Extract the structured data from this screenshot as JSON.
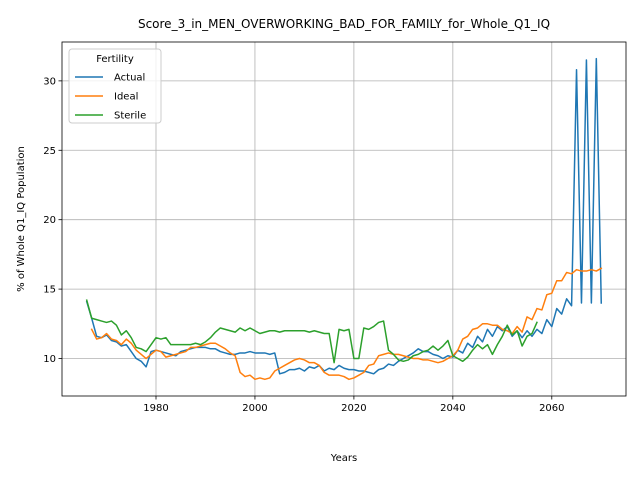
{
  "chart_data": {
    "type": "line",
    "title": "Score_3_in_MEN_OVERWORKING_BAD_FOR_FAMILY_for_Whole_Q1_IQ",
    "xlabel": "Years",
    "ylabel": "% of Whole Q1_IQ Population",
    "xlim": [
      1961,
      2075
    ],
    "ylim": [
      7.3,
      32.8
    ],
    "xticks": [
      1980,
      2000,
      2020,
      2040,
      2060
    ],
    "yticks": [
      10,
      15,
      20,
      25,
      30
    ],
    "grid": true,
    "legend": {
      "title": "Fertility",
      "placement": "top-left",
      "entries": [
        "Actual",
        "Ideal",
        "Sterile"
      ]
    },
    "x": [
      1966,
      1967,
      1968,
      1969,
      1970,
      1971,
      1972,
      1973,
      1974,
      1975,
      1976,
      1977,
      1978,
      1979,
      1980,
      1981,
      1982,
      1983,
      1984,
      1985,
      1986,
      1987,
      1988,
      1989,
      1990,
      1991,
      1992,
      1993,
      1994,
      1995,
      1996,
      1997,
      1998,
      1999,
      2000,
      2001,
      2002,
      2003,
      2004,
      2005,
      2006,
      2007,
      2008,
      2009,
      2010,
      2011,
      2012,
      2013,
      2014,
      2015,
      2016,
      2017,
      2018,
      2019,
      2020,
      2021,
      2022,
      2023,
      2024,
      2025,
      2026,
      2027,
      2028,
      2029,
      2030,
      2031,
      2032,
      2033,
      2034,
      2035,
      2036,
      2037,
      2038,
      2039,
      2040,
      2041,
      2042,
      2043,
      2044,
      2045,
      2046,
      2047,
      2048,
      2049,
      2050,
      2051,
      2052,
      2053,
      2054,
      2055,
      2056,
      2057,
      2058,
      2059,
      2060,
      2061,
      2062,
      2063,
      2064,
      2065,
      2066,
      2067,
      2068,
      2069,
      2070
    ],
    "series": [
      {
        "name": "Actual",
        "color": "#1f77b4",
        "values": [
          14.1,
          12.9,
          11.6,
          11.5,
          11.7,
          11.3,
          11.2,
          10.9,
          11.0,
          10.5,
          10.0,
          9.8,
          9.4,
          10.5,
          10.6,
          10.5,
          10.4,
          10.3,
          10.2,
          10.5,
          10.6,
          10.7,
          10.8,
          10.8,
          10.8,
          10.7,
          10.7,
          10.5,
          10.4,
          10.3,
          10.3,
          10.4,
          10.4,
          10.5,
          10.4,
          10.4,
          10.4,
          10.3,
          10.4,
          8.9,
          9.0,
          9.2,
          9.2,
          9.3,
          9.1,
          9.4,
          9.3,
          9.5,
          9.1,
          9.3,
          9.2,
          9.5,
          9.3,
          9.2,
          9.2,
          9.1,
          9.1,
          9.0,
          8.9,
          9.2,
          9.3,
          9.6,
          9.5,
          9.8,
          10.0,
          10.2,
          10.4,
          10.7,
          10.5,
          10.5,
          10.3,
          10.2,
          10.0,
          10.2,
          10.1,
          10.6,
          10.4,
          11.1,
          10.8,
          11.6,
          11.2,
          12.1,
          11.6,
          12.3,
          12.0,
          12.3,
          11.6,
          12.0,
          11.5,
          12.0,
          11.6,
          12.1,
          11.8,
          12.8,
          12.3,
          13.6,
          13.2,
          14.3,
          13.8,
          30.8,
          14.0,
          31.5,
          14.0,
          31.6,
          14.0
        ]
      },
      {
        "name": "Ideal",
        "color": "#ff7f0e",
        "values": [
          null,
          12.1,
          11.4,
          11.5,
          11.8,
          11.4,
          11.3,
          11.0,
          11.4,
          11.1,
          10.6,
          10.3,
          10.0,
          10.3,
          10.6,
          10.5,
          10.1,
          10.2,
          10.3,
          10.4,
          10.5,
          10.8,
          10.8,
          10.9,
          11.0,
          11.1,
          11.1,
          10.9,
          10.7,
          10.4,
          10.2,
          9.0,
          8.7,
          8.8,
          8.5,
          8.6,
          8.5,
          8.6,
          9.1,
          9.3,
          9.5,
          9.7,
          9.9,
          10.0,
          9.9,
          9.7,
          9.7,
          9.5,
          9.0,
          8.8,
          8.8,
          8.8,
          8.7,
          8.5,
          8.6,
          8.8,
          9.0,
          9.5,
          9.6,
          10.2,
          10.3,
          10.4,
          10.3,
          10.3,
          10.2,
          10.1,
          10.0,
          10.0,
          9.9,
          9.9,
          9.8,
          9.7,
          9.8,
          10.0,
          10.2,
          10.6,
          11.4,
          11.6,
          12.1,
          12.2,
          12.5,
          12.5,
          12.4,
          12.4,
          12.1,
          12.0,
          11.8,
          12.3,
          11.9,
          13.0,
          12.8,
          13.6,
          13.5,
          14.6,
          14.7,
          15.6,
          15.6,
          16.2,
          16.1,
          16.4,
          16.3,
          16.3,
          16.4,
          16.3,
          16.5
        ]
      },
      {
        "name": "Sterile",
        "color": "#2ca02c",
        "values": [
          14.2,
          12.9,
          12.8,
          12.7,
          12.6,
          12.7,
          12.4,
          11.7,
          12.0,
          11.5,
          10.8,
          10.7,
          10.5,
          11.0,
          11.5,
          11.4,
          11.5,
          11.0,
          11.0,
          11.0,
          11.0,
          11.0,
          11.1,
          11.0,
          11.2,
          11.5,
          11.9,
          12.2,
          12.1,
          12.0,
          11.9,
          12.2,
          12.0,
          12.2,
          12.0,
          11.8,
          11.9,
          12.0,
          12.0,
          11.9,
          12.0,
          12.0,
          12.0,
          12.0,
          12.0,
          11.9,
          12.0,
          11.9,
          11.8,
          11.8,
          9.7,
          12.1,
          12.0,
          12.1,
          10.0,
          10.0,
          12.2,
          12.1,
          12.3,
          12.6,
          12.7,
          10.6,
          10.3,
          9.9,
          9.8,
          9.9,
          10.2,
          10.3,
          10.5,
          10.6,
          10.9,
          10.6,
          10.9,
          11.3,
          10.2,
          10.0,
          9.8,
          10.1,
          10.6,
          11.0,
          10.7,
          11.0,
          10.3,
          11.0,
          11.6,
          12.4,
          11.7,
          12.0,
          10.9,
          11.6,
          11.8,
          12.6,
          null,
          null,
          null,
          null,
          null,
          null,
          null,
          null,
          null,
          null,
          null,
          null,
          null
        ]
      }
    ]
  }
}
